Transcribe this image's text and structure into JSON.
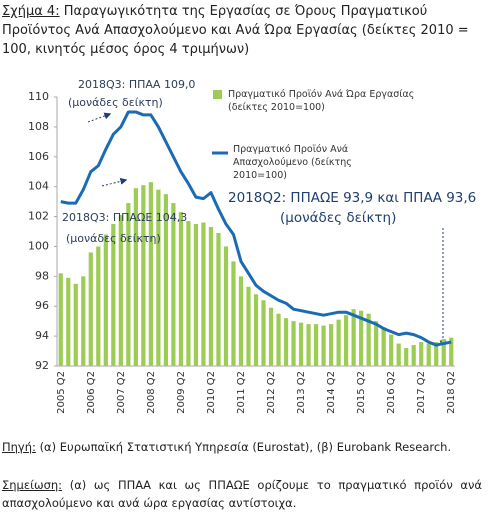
{
  "chart_data": {
    "type": "bar-line",
    "figure_label": "Σχήμα 4:",
    "title": "Παραγωγικότητα της Εργασίας σε Όρους Πραγματικού Προϊόντος Ανά Απασχολούμενο και Ανά Ώρα Εργασίας (δείκτες 2010 = 100, κινητός μέσος όρος 4 τριμήνων)",
    "categories": [
      "2005 Q2",
      null,
      null,
      null,
      "2006 Q2",
      null,
      null,
      null,
      "2007 Q2",
      null,
      null,
      null,
      "2008 Q2",
      null,
      null,
      null,
      "2009 Q2",
      null,
      null,
      null,
      "2010 Q2",
      null,
      null,
      null,
      "2011 Q2",
      null,
      null,
      null,
      "2012 Q2",
      null,
      null,
      null,
      "2013 Q2",
      null,
      null,
      null,
      "2014 Q2",
      null,
      null,
      null,
      "2015 Q2",
      null,
      null,
      null,
      "2016 Q2",
      null,
      null,
      null,
      "2017 Q2",
      null,
      null,
      null,
      "2018 Q2"
    ],
    "series": [
      {
        "name": "Πραγματικό Προϊόν Ανά Ώρα Εργασίας (δείκτες 2010=100)",
        "type": "bar",
        "color": "#9dcc55",
        "values": [
          98.2,
          97.9,
          97.5,
          98.0,
          99.6,
          100.0,
          100.8,
          101.5,
          102.1,
          102.9,
          103.9,
          104.1,
          104.3,
          103.8,
          103.5,
          102.9,
          102.3,
          101.7,
          101.5,
          101.6,
          101.3,
          100.9,
          100.0,
          99.0,
          98.0,
          97.3,
          96.8,
          96.4,
          95.9,
          95.5,
          95.2,
          95.0,
          94.9,
          94.8,
          94.8,
          94.7,
          94.8,
          95.1,
          95.4,
          95.8,
          95.7,
          95.5,
          95.0,
          94.6,
          94.1,
          93.5,
          93.2,
          93.4,
          93.6,
          93.5,
          93.6,
          93.8,
          93.9
        ]
      },
      {
        "name": "Πραγματικό Προϊόν Ανά Απασχολούμενο (δείκτης 2010=100)",
        "type": "line",
        "color": "#1a6bb3",
        "values": [
          103.0,
          102.9,
          102.9,
          103.8,
          105.0,
          105.4,
          106.5,
          107.5,
          108.0,
          109.0,
          109.0,
          108.8,
          108.8,
          108.0,
          107.0,
          106.0,
          105.0,
          104.2,
          103.3,
          103.2,
          103.6,
          102.5,
          101.5,
          100.8,
          99.0,
          98.2,
          97.4,
          97.0,
          96.7,
          96.4,
          96.2,
          95.8,
          95.7,
          95.6,
          95.5,
          95.4,
          95.5,
          95.6,
          95.6,
          95.4,
          95.2,
          95.0,
          94.8,
          94.5,
          94.3,
          94.1,
          94.2,
          94.1,
          93.9,
          93.6,
          93.4,
          93.5,
          93.6
        ]
      }
    ],
    "ylim": [
      92,
      110
    ],
    "yticks": [
      92,
      94,
      96,
      98,
      100,
      102,
      104,
      106,
      108,
      110
    ],
    "grid": false,
    "annotations": [
      "2018Q3: ΠΠΑΑ 109,0",
      "(μονάδες δείκτη)",
      "2018Q3: ΠΠΑΩΕ 104,3",
      "(μονάδες δείκτη)",
      "2018Q2: ΠΠΑΩΕ 93,9 και ΠΠΑΑ 93,6",
      "(μονάδες δείκτη)"
    ],
    "source_label": "Πηγή:",
    "source": "(α) Ευρωπαϊκή Στατιστική Υπηρεσία (Eurostat), (β) Eurobank Research.",
    "note_label": "Σημείωση:",
    "note": "(α) ως ΠΠΑΑ και ως ΠΠΑΩΕ ορίζουμε το πραγματικό προϊόν ανά απασχολούμενο και ανά ώρα εργασίας αντίστοιχα."
  }
}
